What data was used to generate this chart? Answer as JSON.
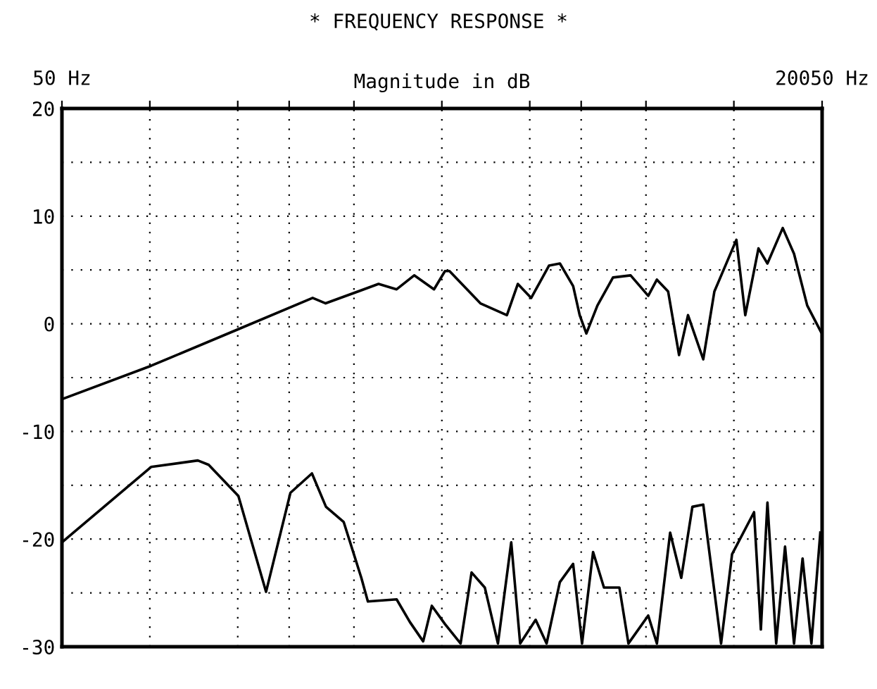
{
  "chart_data": {
    "type": "line",
    "title": "* FREQUENCY RESPONSE *",
    "ylabel": "Magnitude in dB",
    "log": "x",
    "xlim": [
      50,
      20050
    ],
    "ylim": [
      -30,
      20
    ],
    "xticks": [
      {
        "value": 50,
        "label": "50 Hz"
      },
      {
        "value": 100,
        "label": null
      },
      {
        "value": 200,
        "label": null
      },
      {
        "value": 300,
        "label": null
      },
      {
        "value": 500,
        "label": null
      },
      {
        "value": 1000,
        "label": null
      },
      {
        "value": 2000,
        "label": null
      },
      {
        "value": 3000,
        "label": null
      },
      {
        "value": 5000,
        "label": null
      },
      {
        "value": 10000,
        "label": null
      },
      {
        "value": 20050,
        "label": "20050 Hz"
      }
    ],
    "yticks": [
      -30,
      {
        "value": -25,
        "label": null
      },
      -20,
      {
        "value": -15,
        "label": null
      },
      -10,
      {
        "value": -5,
        "label": null
      },
      0,
      {
        "value": 5,
        "label": null
      },
      10,
      {
        "value": 15,
        "label": null
      },
      20
    ],
    "grid": true,
    "line_style": "solid",
    "marker": "none",
    "series": [
      {
        "color": "#000000",
        "x": [
          50,
          101,
          201,
          361,
          400,
          607,
          700,
          804,
          940,
          1025,
          1062,
          1355,
          1670,
          1820,
          2023,
          2327,
          2537,
          2816,
          2965,
          3125,
          3410,
          3855,
          4430,
          5090,
          5450,
          5955,
          6490,
          6965,
          7855,
          8575,
          10200,
          10940,
          12140,
          13030,
          14700,
          16070,
          17830,
          20000,
          20050
        ],
        "values": [
          -7.0,
          -3.9,
          -0.5,
          2.4,
          1.9,
          3.7,
          3.2,
          4.5,
          3.2,
          4.9,
          4.9,
          1.9,
          0.8,
          3.7,
          2.4,
          5.4,
          5.6,
          3.5,
          0.8,
          -0.9,
          1.7,
          4.3,
          4.5,
          2.6,
          4.1,
          3.0,
          -2.9,
          0.8,
          -3.3,
          3.0,
          7.8,
          0.8,
          7.0,
          5.6,
          8.9,
          6.5,
          1.7,
          -0.9,
          -8.3
        ]
      },
      {
        "color": "#000000",
        "x": [
          50,
          101,
          146,
          159,
          201,
          250,
          303,
          359,
          401,
          461,
          530,
          558,
          700,
          777,
          863,
          924,
          1025,
          1159,
          1264,
          1403,
          1556,
          1728,
          1854,
          2095,
          2284,
          2535,
          2815,
          3020,
          3295,
          3590,
          4055,
          4355,
          5090,
          5450,
          6050,
          6605,
          7210,
          7855,
          9040,
          9860,
          11725,
          12370,
          13030,
          13960,
          14970,
          16070,
          17190,
          18430,
          19770
        ],
        "values": [
          -20.3,
          -13.3,
          -12.7,
          -13.1,
          -16.0,
          -24.9,
          -15.7,
          -13.9,
          -17.0,
          -18.4,
          -23.6,
          -25.8,
          -25.6,
          -27.7,
          -29.5,
          -26.2,
          -27.9,
          -29.7,
          -23.1,
          -24.5,
          -29.7,
          -20.3,
          -29.7,
          -27.5,
          -29.7,
          -24.0,
          -22.3,
          -29.7,
          -21.2,
          -24.5,
          -24.5,
          -29.7,
          -27.1,
          -29.7,
          -19.4,
          -23.6,
          -17.0,
          -16.8,
          -29.7,
          -21.4,
          -17.5,
          -28.4,
          -16.6,
          -29.7,
          -20.7,
          -29.7,
          -21.8,
          -29.7,
          -19.4
        ]
      }
    ]
  }
}
